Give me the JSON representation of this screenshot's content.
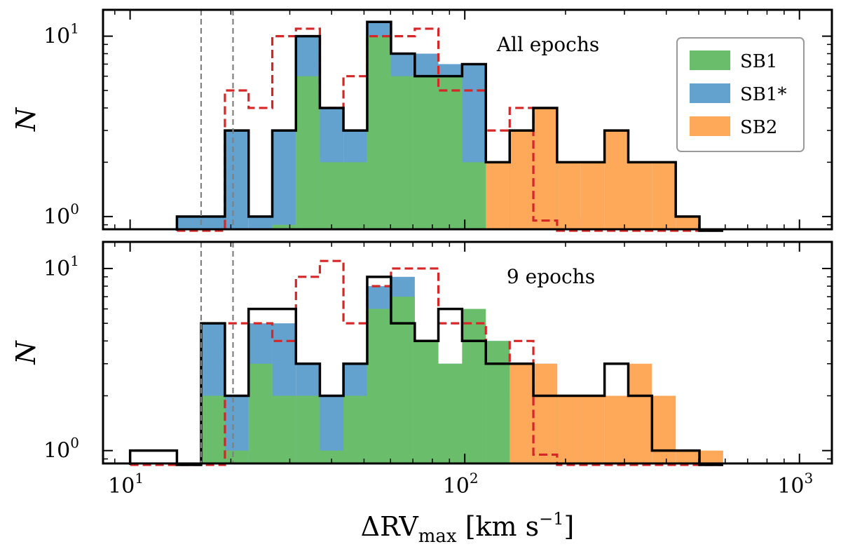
{
  "chart_data": [
    {
      "type": "histogram",
      "annotation": "All epochs",
      "ylabel": "N",
      "yscale": "log",
      "ylim": [
        0.85,
        14
      ],
      "y_ticks": [
        {
          "base": "10",
          "exp": "0",
          "value": 1
        },
        {
          "base": "10",
          "exp": "1",
          "value": 10
        }
      ],
      "bin_edges": [
        13.8,
        16.3,
        19.2,
        22.6,
        26.6,
        31.3,
        36.9,
        43.4,
        51.1,
        60.2,
        70.9,
        83.4,
        98.2,
        115.6,
        136.2,
        160.3,
        188.7,
        222.2,
        261.6,
        308.0,
        362.6,
        426.9,
        502.6,
        591.7
      ],
      "stacked_series": [
        {
          "name": "SB1",
          "color": "#6abd6a",
          "values": [
            0,
            0,
            0,
            0,
            0.9,
            6,
            2,
            2,
            10,
            6,
            6,
            6,
            2,
            2,
            2,
            4,
            0.85,
            0,
            0,
            0,
            0,
            0,
            0
          ]
        },
        {
          "name": "SB1*",
          "color": "#63a1cf",
          "values": [
            1,
            1,
            3,
            1,
            3,
            10,
            4,
            3,
            12,
            8,
            8,
            7,
            7,
            2,
            2,
            4,
            1,
            0,
            0,
            0,
            0,
            0,
            0
          ]
        },
        {
          "name": "SB2",
          "color": "#fea85a",
          "values": [
            0,
            0,
            0,
            0,
            0,
            0,
            0,
            0,
            0,
            0,
            0,
            0,
            0,
            2,
            3,
            4,
            2,
            2,
            3,
            2,
            2,
            1,
            0
          ]
        }
      ],
      "outline": {
        "color": "#000000",
        "values": [
          1,
          1,
          3,
          1,
          3,
          10,
          4,
          3,
          12,
          8,
          6,
          6,
          7,
          2,
          3,
          4,
          2,
          2,
          3,
          2,
          2,
          1,
          0
        ]
      },
      "dashed": {
        "color": "#d62728",
        "values": [
          0,
          0,
          5,
          4,
          10,
          11,
          4,
          6,
          10,
          10,
          11,
          5,
          5,
          3,
          4,
          0.95,
          0,
          0,
          0,
          0,
          0,
          0,
          0
        ]
      },
      "vlines": [
        16.3,
        20.3
      ],
      "legend": {
        "position": "upper right",
        "entries": [
          "SB1",
          "SB1*",
          "SB2"
        ]
      }
    },
    {
      "type": "histogram",
      "annotation": "9 epochs",
      "ylabel": "N",
      "xlabel_main": "ΔRV",
      "xlabel_sub": "max",
      "xlabel_unit": "[km s",
      "xlabel_exp": "−1",
      "xlabel_close": "]",
      "xscale": "log",
      "xlim": [
        8.3,
        1250
      ],
      "x_ticks": [
        {
          "base": "10",
          "exp": "1",
          "value": 10
        },
        {
          "base": "10",
          "exp": "2",
          "value": 100
        },
        {
          "base": "10",
          "exp": "3",
          "value": 1000
        }
      ],
      "yscale": "log",
      "ylim": [
        0.85,
        14
      ],
      "y_ticks": [
        {
          "base": "10",
          "exp": "0",
          "value": 1
        },
        {
          "base": "10",
          "exp": "1",
          "value": 10
        }
      ],
      "bin_edges": [
        10.0,
        11.7,
        13.8,
        16.3,
        19.2,
        22.6,
        26.6,
        31.3,
        36.9,
        43.4,
        51.1,
        60.2,
        70.9,
        83.4,
        98.2,
        115.6,
        136.2,
        160.3,
        188.7,
        222.2,
        261.6,
        308.0,
        362.6,
        426.9,
        502.6,
        591.7
      ],
      "stacked_series": [
        {
          "name": "SB1",
          "color": "#6abd6a",
          "values": [
            0,
            0.85,
            0,
            2,
            1,
            3,
            2,
            2,
            1,
            2,
            6,
            7,
            4,
            3,
            6,
            4,
            2,
            2,
            2,
            0.85,
            0,
            0,
            0,
            0,
            0
          ]
        },
        {
          "name": "SB1*",
          "color": "#63a1cf",
          "values": [
            0,
            0.85,
            0,
            5,
            2,
            5,
            5,
            3,
            2,
            3,
            8,
            9,
            4,
            3,
            5,
            4,
            3,
            3,
            2,
            0.85,
            0,
            0,
            0,
            0,
            0
          ]
        },
        {
          "name": "SB2",
          "color": "#fea85a",
          "values": [
            0,
            0,
            0,
            0,
            0,
            0,
            0,
            0,
            0,
            0,
            0,
            0,
            0,
            0,
            0,
            0,
            3,
            3,
            2,
            2,
            2,
            3,
            2,
            1,
            1
          ]
        }
      ],
      "outline": {
        "color": "#000000",
        "values": [
          1,
          1,
          0,
          5,
          2,
          6,
          6,
          3,
          2,
          3,
          9,
          5,
          4,
          6,
          4,
          3,
          3,
          2,
          2,
          2,
          3,
          2,
          1,
          1,
          0
        ]
      },
      "dashed": {
        "color": "#d62728",
        "values": [
          0,
          0,
          0,
          0,
          5,
          5,
          4,
          9,
          11,
          5,
          8,
          10,
          10,
          5,
          5,
          3,
          4,
          0.95,
          0,
          0,
          0,
          0,
          0,
          0,
          0
        ]
      },
      "vlines": [
        16.3,
        20.3
      ]
    }
  ]
}
